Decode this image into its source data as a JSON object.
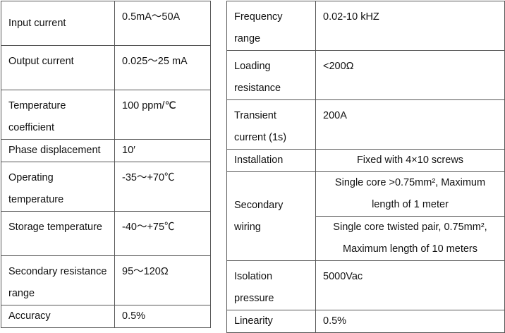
{
  "left": {
    "rows": [
      [
        "Input current",
        "0.5mA～50A"
      ],
      [
        "Output current",
        "0.025～25 mA"
      ],
      [
        "Temperature coefficient",
        "100 ppm/℃"
      ],
      [
        "Phase displacement",
        "10′"
      ],
      [
        "Operating temperature",
        "-35～+70℃"
      ],
      [
        "Storage temperature",
        "-40～+75℃"
      ],
      [
        "Secondary resistance range",
        "95～120Ω"
      ],
      [
        "Accuracy",
        "0.5%"
      ]
    ]
  },
  "right": {
    "rows": [
      [
        "Frequency range",
        "0.02-10 kHZ"
      ],
      [
        "Loading resistance",
        "<200Ω"
      ],
      [
        "Transient current (1s)",
        "200A"
      ],
      [
        "Installation",
        "Fixed with 4×10 screws"
      ],
      [
        "Secondary wiring",
        "Single core >0.75mm², Maximum length of 1 meter"
      ],
      [
        "Single core twisted pair, 0.75mm², Maximum length of 10 meters"
      ],
      [
        "Isolation pressure",
        "5000Vac"
      ],
      [
        "Linearity",
        "0.5%"
      ]
    ]
  }
}
